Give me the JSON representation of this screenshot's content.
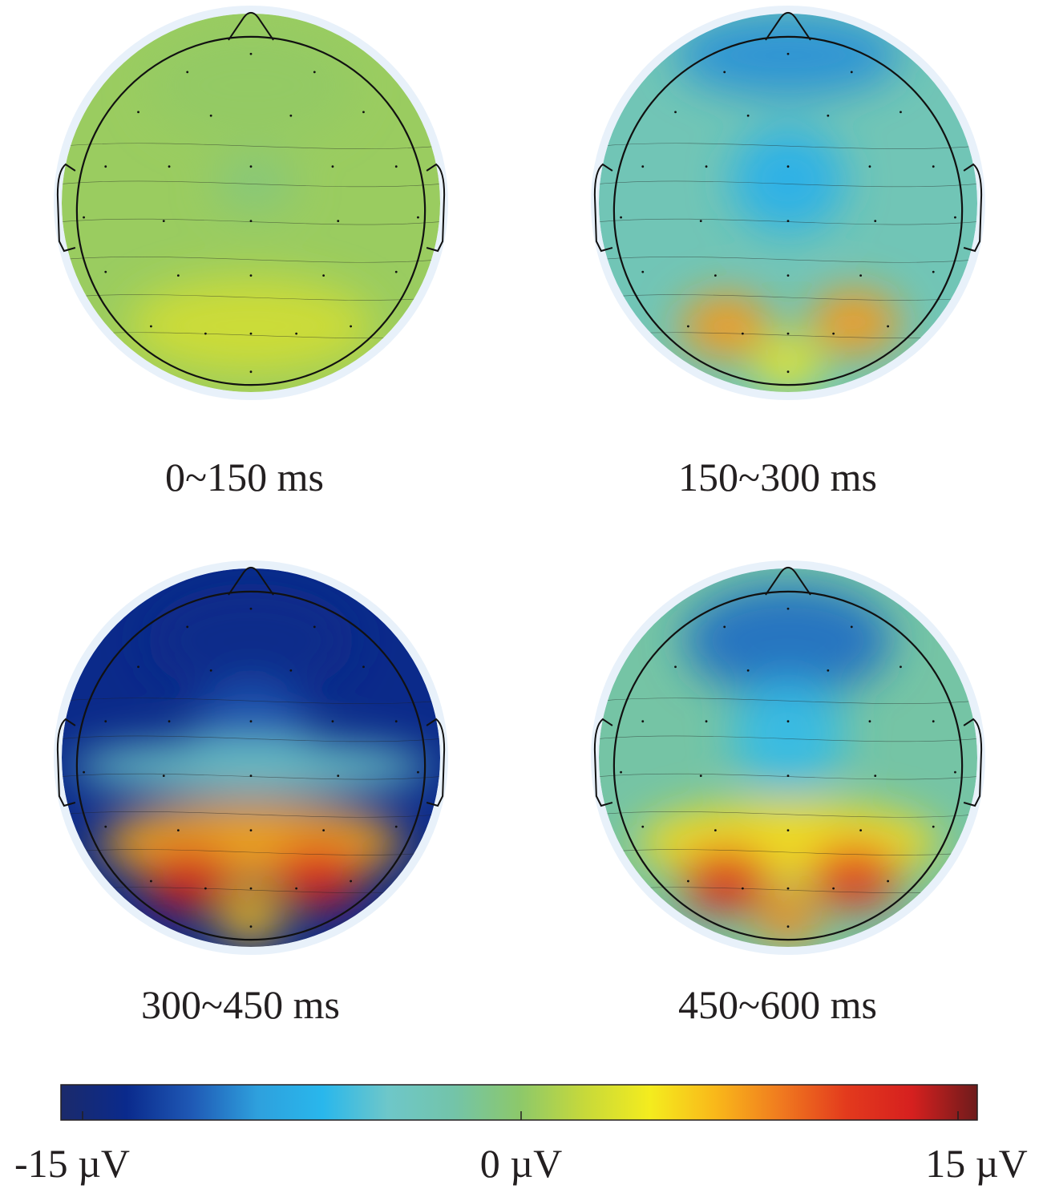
{
  "chart_data": {
    "type": "heatmap",
    "title": "",
    "colorscale": {
      "min": -15,
      "max": 15,
      "tick_labels": [
        "-15 µV",
        "0 µV",
        "15 µV"
      ],
      "stops": [
        "#1b2a6b",
        "#0a2a8c",
        "#1f59b5",
        "#2ea0dd",
        "#29b7ec",
        "#6ec7c9",
        "#73c4a9",
        "#8cc86b",
        "#c7d93a",
        "#f4ec1e",
        "#f9b81a",
        "#f07a1f",
        "#e33a1d",
        "#d6201f",
        "#6e1b1b"
      ]
    },
    "panels": [
      {
        "time_window": "0~150 ms",
        "features": [
          {
            "region": "background",
            "value": 0.5
          },
          {
            "region": "frontal",
            "value": 0.3
          },
          {
            "region": "central-right",
            "value": -0.6
          },
          {
            "region": "occipital",
            "value": 2.5
          }
        ]
      },
      {
        "time_window": "150~300 ms",
        "features": [
          {
            "region": "background",
            "value": -3
          },
          {
            "region": "frontal-pole",
            "value": -9
          },
          {
            "region": "central",
            "value": -7
          },
          {
            "region": "occipital-left",
            "value": 7.5
          },
          {
            "region": "occipital-right",
            "value": 7.5
          },
          {
            "region": "occipital-midline",
            "value": 4
          }
        ]
      },
      {
        "time_window": "300~450 ms",
        "features": [
          {
            "region": "frontal",
            "value": -13
          },
          {
            "region": "central",
            "value": -11
          },
          {
            "region": "temporal",
            "value": -4
          },
          {
            "region": "parietal",
            "value": 7
          },
          {
            "region": "occipital-left",
            "value": 13
          },
          {
            "region": "occipital-right",
            "value": 12.5
          },
          {
            "region": "occipital-midline",
            "value": 6
          }
        ]
      },
      {
        "time_window": "450~600 ms",
        "features": [
          {
            "region": "background",
            "value": -2
          },
          {
            "region": "frontal",
            "value": -10
          },
          {
            "region": "central",
            "value": -6
          },
          {
            "region": "parietal",
            "value": 5
          },
          {
            "region": "occipital-left",
            "value": 12
          },
          {
            "region": "occipital-right",
            "value": 11
          },
          {
            "region": "occipital-midline",
            "value": 8
          }
        ]
      }
    ]
  }
}
